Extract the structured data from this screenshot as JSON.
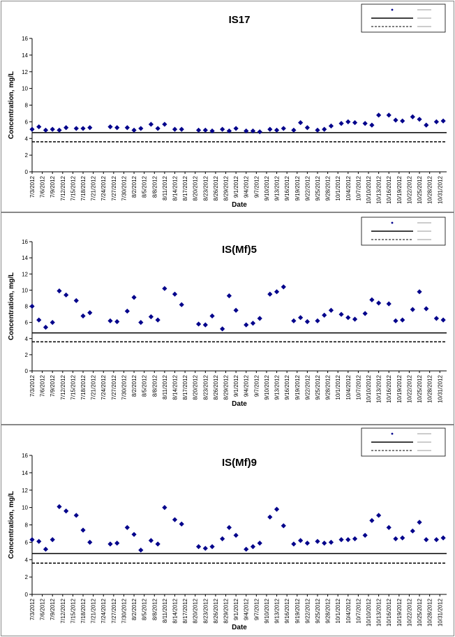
{
  "chart_data": [
    {
      "type": "scatter",
      "title": "IS17",
      "xlabel": "Date",
      "ylabel": "Concentration, mg/L",
      "ylim": [
        0,
        16
      ],
      "yticks": [
        "0",
        "2",
        "4",
        "6",
        "8",
        "10",
        "12",
        "14",
        "16"
      ],
      "x_dates": [
        "7/3/2012",
        "7/6/2012",
        "7/9/2012",
        "7/12/2012",
        "7/15/2012",
        "7/18/2012",
        "7/21/2012",
        "7/24/2012",
        "7/27/2012",
        "7/30/2012",
        "8/2/2012",
        "8/5/2012",
        "8/8/2012",
        "8/11/2012",
        "8/14/2012",
        "8/17/2012",
        "8/20/2012",
        "8/23/2012",
        "8/26/2012",
        "8/29/2012",
        "9/1/2012",
        "9/4/2012",
        "9/7/2012",
        "9/10/2012",
        "9/13/2012",
        "9/16/2012",
        "9/19/2012",
        "9/22/2012",
        "9/25/2012",
        "9/28/2012",
        "10/1/2012",
        "10/4/2012",
        "10/7/2012",
        "10/10/2012",
        "10/13/2012",
        "10/16/2012",
        "10/19/2012",
        "10/22/2012",
        "10/25/2012",
        "10/28/2012",
        "10/31/2012"
      ],
      "series": [
        {
          "marker": "diamond",
          "color": "#00008b",
          "points": [
            [
              "7/3/2012",
              5.1
            ],
            [
              "7/5/2012",
              5.4
            ],
            [
              "7/7/2012",
              5.0
            ],
            [
              "7/9/2012",
              5.1
            ],
            [
              "7/11/2012",
              5.0
            ],
            [
              "7/13/2012",
              5.3
            ],
            [
              "7/16/2012",
              5.2
            ],
            [
              "7/18/2012",
              5.2
            ],
            [
              "7/20/2012",
              5.3
            ],
            [
              "7/26/2012",
              5.4
            ],
            [
              "7/28/2012",
              5.3
            ],
            [
              "7/31/2012",
              5.3
            ],
            [
              "8/2/2012",
              5.0
            ],
            [
              "8/4/2012",
              5.2
            ],
            [
              "8/7/2012",
              5.7
            ],
            [
              "8/9/2012",
              5.2
            ],
            [
              "8/11/2012",
              5.7
            ],
            [
              "8/14/2012",
              5.1
            ],
            [
              "8/16/2012",
              5.1
            ],
            [
              "8/21/2012",
              5.0
            ],
            [
              "8/23/2012",
              5.0
            ],
            [
              "8/25/2012",
              4.9
            ],
            [
              "8/28/2012",
              5.1
            ],
            [
              "8/30/2012",
              4.9
            ],
            [
              "9/1/2012",
              5.2
            ],
            [
              "9/4/2012",
              4.9
            ],
            [
              "9/6/2012",
              4.9
            ],
            [
              "9/8/2012",
              4.8
            ],
            [
              "9/11/2012",
              5.1
            ],
            [
              "9/13/2012",
              5.0
            ],
            [
              "9/15/2012",
              5.2
            ],
            [
              "9/18/2012",
              5.0
            ],
            [
              "9/20/2012",
              5.9
            ],
            [
              "9/22/2012",
              5.3
            ],
            [
              "9/25/2012",
              5.0
            ],
            [
              "9/27/2012",
              5.1
            ],
            [
              "9/29/2012",
              5.5
            ],
            [
              "10/2/2012",
              5.8
            ],
            [
              "10/4/2012",
              6.0
            ],
            [
              "10/6/2012",
              5.9
            ],
            [
              "10/9/2012",
              5.8
            ],
            [
              "10/11/2012",
              5.6
            ],
            [
              "10/13/2012",
              6.8
            ],
            [
              "10/16/2012",
              6.8
            ],
            [
              "10/18/2012",
              6.2
            ],
            [
              "10/20/2012",
              6.1
            ],
            [
              "10/23/2012",
              6.6
            ],
            [
              "10/25/2012",
              6.3
            ],
            [
              "10/27/2012",
              5.6
            ],
            [
              "10/30/2012",
              6.0
            ],
            [
              "11/1/2012",
              6.1
            ]
          ]
        },
        {
          "line": "solid",
          "value": 4.7
        },
        {
          "line": "dashed",
          "value": 3.6
        }
      ]
    },
    {
      "type": "scatter",
      "title": "IS(Mf)5",
      "xlabel": "Date",
      "ylabel": "Concentration, mg/L",
      "ylim": [
        0,
        16
      ],
      "yticks": [
        "0",
        "2",
        "4",
        "6",
        "8",
        "10",
        "12",
        "14",
        "16"
      ],
      "x_dates": [
        "7/3/2012",
        "7/6/2012",
        "7/9/2012",
        "7/12/2012",
        "7/15/2012",
        "7/18/2012",
        "7/21/2012",
        "7/24/2012",
        "7/27/2012",
        "7/30/2012",
        "8/2/2012",
        "8/5/2012",
        "8/8/2012",
        "8/11/2012",
        "8/14/2012",
        "8/17/2012",
        "8/20/2012",
        "8/23/2012",
        "8/26/2012",
        "8/29/2012",
        "9/1/2012",
        "9/4/2012",
        "9/7/2012",
        "9/10/2012",
        "9/13/2012",
        "9/16/2012",
        "9/19/2012",
        "9/22/2012",
        "9/25/2012",
        "9/28/2012",
        "10/1/2012",
        "10/4/2012",
        "10/7/2012",
        "10/10/2012",
        "10/13/2012",
        "10/16/2012",
        "10/19/2012",
        "10/22/2012",
        "10/25/2012",
        "10/28/2012",
        "10/31/2012"
      ],
      "series": [
        {
          "marker": "diamond",
          "color": "#00008b",
          "points": [
            [
              "7/3/2012",
              8.0
            ],
            [
              "7/5/2012",
              6.3
            ],
            [
              "7/7/2012",
              5.4
            ],
            [
              "7/9/2012",
              6.0
            ],
            [
              "7/11/2012",
              9.9
            ],
            [
              "7/13/2012",
              9.4
            ],
            [
              "7/16/2012",
              8.7
            ],
            [
              "7/18/2012",
              6.8
            ],
            [
              "7/20/2012",
              7.2
            ],
            [
              "7/26/2012",
              6.2
            ],
            [
              "7/28/2012",
              6.1
            ],
            [
              "7/31/2012",
              7.4
            ],
            [
              "8/2/2012",
              9.1
            ],
            [
              "8/4/2012",
              6.0
            ],
            [
              "8/7/2012",
              6.7
            ],
            [
              "8/9/2012",
              6.3
            ],
            [
              "8/11/2012",
              10.2
            ],
            [
              "8/14/2012",
              9.5
            ],
            [
              "8/16/2012",
              8.2
            ],
            [
              "8/21/2012",
              5.8
            ],
            [
              "8/23/2012",
              5.7
            ],
            [
              "8/25/2012",
              6.8
            ],
            [
              "8/28/2012",
              5.2
            ],
            [
              "8/30/2012",
              9.3
            ],
            [
              "9/1/2012",
              7.5
            ],
            [
              "9/4/2012",
              5.7
            ],
            [
              "9/6/2012",
              5.9
            ],
            [
              "9/8/2012",
              6.5
            ],
            [
              "9/11/2012",
              9.5
            ],
            [
              "9/13/2012",
              9.8
            ],
            [
              "9/15/2012",
              10.4
            ],
            [
              "9/18/2012",
              6.2
            ],
            [
              "9/20/2012",
              6.6
            ],
            [
              "9/22/2012",
              6.1
            ],
            [
              "9/25/2012",
              6.2
            ],
            [
              "9/27/2012",
              6.9
            ],
            [
              "9/29/2012",
              7.5
            ],
            [
              "10/2/2012",
              7.0
            ],
            [
              "10/4/2012",
              6.6
            ],
            [
              "10/6/2012",
              6.4
            ],
            [
              "10/9/2012",
              7.1
            ],
            [
              "10/11/2012",
              8.8
            ],
            [
              "10/13/2012",
              8.4
            ],
            [
              "10/16/2012",
              8.3
            ],
            [
              "10/18/2012",
              6.2
            ],
            [
              "10/20/2012",
              6.3
            ],
            [
              "10/23/2012",
              7.6
            ],
            [
              "10/25/2012",
              9.8
            ],
            [
              "10/27/2012",
              7.7
            ],
            [
              "10/30/2012",
              6.5
            ],
            [
              "11/1/2012",
              6.3
            ]
          ]
        },
        {
          "line": "solid",
          "value": 4.7
        },
        {
          "line": "dashed",
          "value": 3.6
        }
      ]
    },
    {
      "type": "scatter",
      "title": "IS(Mf)9",
      "xlabel": "Date",
      "ylabel": "Concentration, mg/L",
      "ylim": [
        0,
        16
      ],
      "yticks": [
        "0",
        "2",
        "4",
        "6",
        "8",
        "10",
        "12",
        "14",
        "16"
      ],
      "x_dates": [
        "7/3/2012",
        "7/6/2012",
        "7/9/2012",
        "7/12/2012",
        "7/15/2012",
        "7/18/2012",
        "7/21/2012",
        "7/24/2012",
        "7/27/2012",
        "7/30/2012",
        "8/2/2012",
        "8/5/2012",
        "8/8/2012",
        "8/11/2012",
        "8/14/2012",
        "8/17/2012",
        "8/20/2012",
        "8/23/2012",
        "8/26/2012",
        "8/29/2012",
        "9/1/2012",
        "9/4/2012",
        "9/7/2012",
        "9/10/2012",
        "9/13/2012",
        "9/16/2012",
        "9/19/2012",
        "9/22/2012",
        "9/25/2012",
        "9/28/2012",
        "10/1/2012",
        "10/4/2012",
        "10/7/2012",
        "10/10/2012",
        "10/13/2012",
        "10/16/2012",
        "10/19/2012",
        "10/22/2012",
        "10/25/2012",
        "10/28/2012",
        "10/31/2012"
      ],
      "series": [
        {
          "marker": "diamond",
          "color": "#00008b",
          "points": [
            [
              "7/3/2012",
              6.3
            ],
            [
              "7/5/2012",
              6.1
            ],
            [
              "7/7/2012",
              5.2
            ],
            [
              "7/9/2012",
              6.3
            ],
            [
              "7/11/2012",
              10.1
            ],
            [
              "7/13/2012",
              9.6
            ],
            [
              "7/16/2012",
              9.1
            ],
            [
              "7/18/2012",
              7.4
            ],
            [
              "7/20/2012",
              6.0
            ],
            [
              "7/26/2012",
              5.8
            ],
            [
              "7/28/2012",
              5.9
            ],
            [
              "7/31/2012",
              7.7
            ],
            [
              "8/2/2012",
              6.9
            ],
            [
              "8/4/2012",
              5.1
            ],
            [
              "8/7/2012",
              6.2
            ],
            [
              "8/9/2012",
              5.8
            ],
            [
              "8/11/2012",
              10.0
            ],
            [
              "8/14/2012",
              8.6
            ],
            [
              "8/16/2012",
              8.1
            ],
            [
              "8/21/2012",
              5.5
            ],
            [
              "8/23/2012",
              5.3
            ],
            [
              "8/25/2012",
              5.5
            ],
            [
              "8/28/2012",
              6.4
            ],
            [
              "8/30/2012",
              7.7
            ],
            [
              "9/1/2012",
              6.8
            ],
            [
              "9/4/2012",
              5.2
            ],
            [
              "9/6/2012",
              5.5
            ],
            [
              "9/8/2012",
              5.9
            ],
            [
              "9/11/2012",
              8.9
            ],
            [
              "9/13/2012",
              9.8
            ],
            [
              "9/15/2012",
              7.9
            ],
            [
              "9/18/2012",
              5.8
            ],
            [
              "9/20/2012",
              6.2
            ],
            [
              "9/22/2012",
              5.9
            ],
            [
              "9/25/2012",
              6.1
            ],
            [
              "9/27/2012",
              5.9
            ],
            [
              "9/29/2012",
              6.0
            ],
            [
              "10/2/2012",
              6.3
            ],
            [
              "10/4/2012",
              6.3
            ],
            [
              "10/6/2012",
              6.4
            ],
            [
              "10/9/2012",
              6.8
            ],
            [
              "10/11/2012",
              8.5
            ],
            [
              "10/13/2012",
              9.1
            ],
            [
              "10/16/2012",
              7.7
            ],
            [
              "10/18/2012",
              6.4
            ],
            [
              "10/20/2012",
              6.5
            ],
            [
              "10/23/2012",
              7.3
            ],
            [
              "10/25/2012",
              8.3
            ],
            [
              "10/27/2012",
              6.3
            ],
            [
              "10/30/2012",
              6.3
            ],
            [
              "11/1/2012",
              6.5
            ]
          ]
        },
        {
          "line": "solid",
          "value": 4.7
        },
        {
          "line": "dashed",
          "value": 3.6
        }
      ]
    }
  ]
}
